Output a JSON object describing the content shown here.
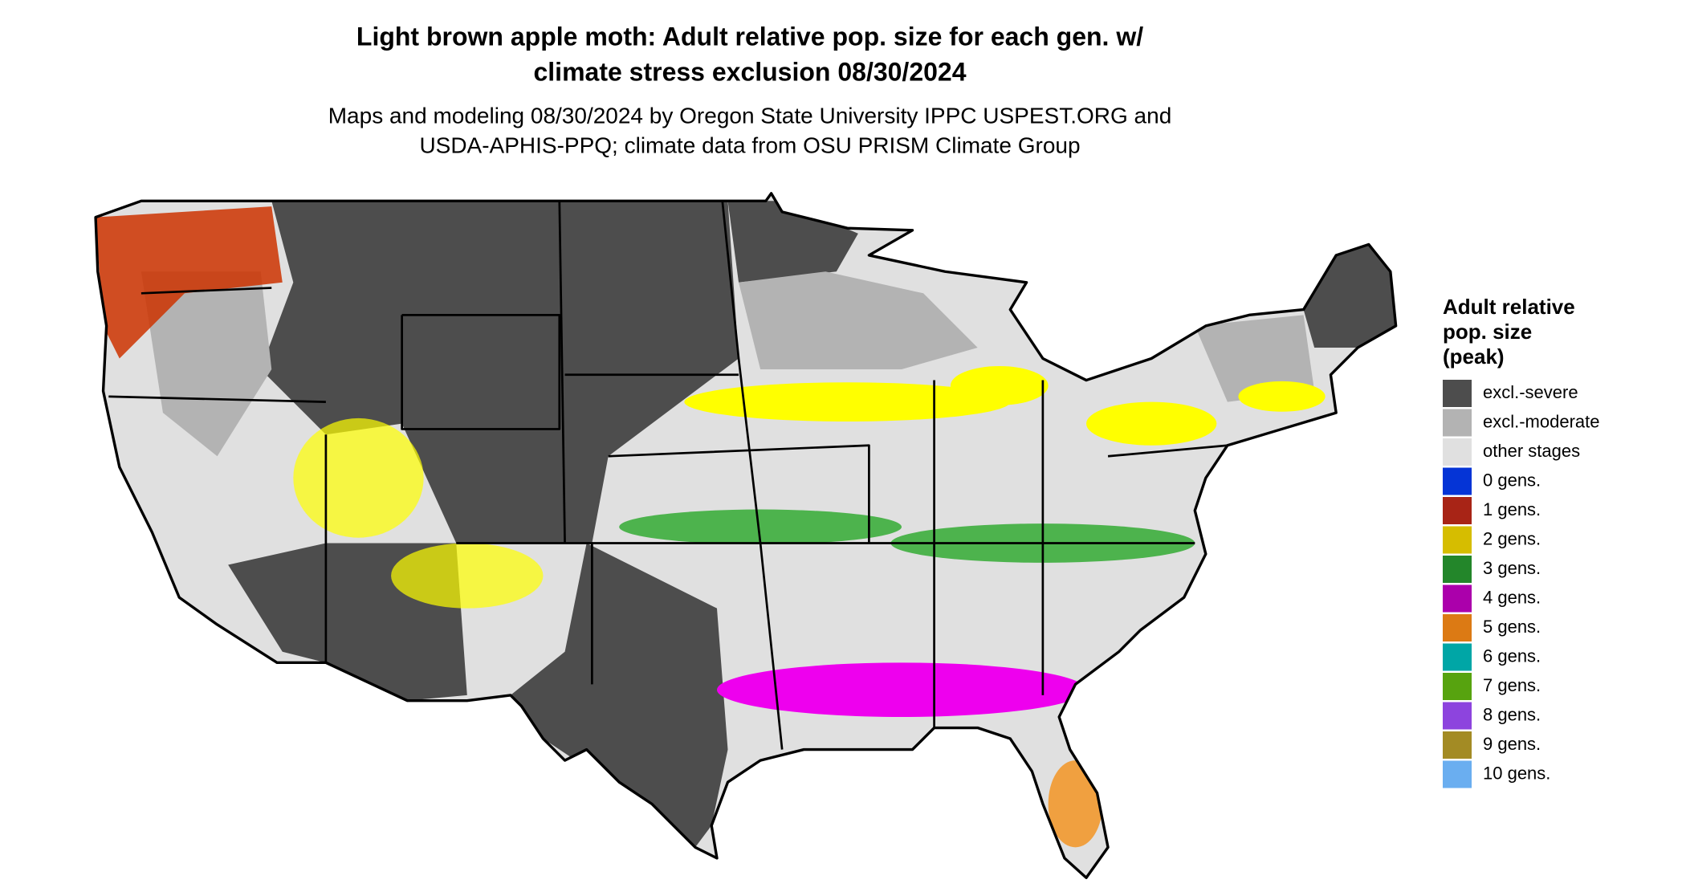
{
  "title": [
    "Light brown apple moth: Adult relative pop. size for each gen. w/",
    "climate stress exclusion 08/30/2024"
  ],
  "subtitle": [
    "Maps and modeling 08/30/2024 by Oregon State University IPPC USPEST.ORG and",
    "USDA-APHIS-PPQ; climate data from OSU PRISM Climate Group"
  ],
  "legend": {
    "title": [
      "Adult relative",
      "pop. size",
      "(peak)"
    ],
    "items": [
      {
        "label": "excl.-severe",
        "color": "#4d4d4d"
      },
      {
        "label": "excl.-moderate",
        "color": "#b3b3b3"
      },
      {
        "label": "other stages",
        "color": "#e0e0e0"
      },
      {
        "label": "0 gens.",
        "color": "#0534d6"
      },
      {
        "label": "1 gens.",
        "color": "#a82416"
      },
      {
        "label": "2 gens.",
        "color": "#d6bd00"
      },
      {
        "label": "3 gens.",
        "color": "#23862a"
      },
      {
        "label": "4 gens.",
        "color": "#ab00ab"
      },
      {
        "label": "5 gens.",
        "color": "#dc7a14"
      },
      {
        "label": "6 gens.",
        "color": "#00a6a6"
      },
      {
        "label": "7 gens.",
        "color": "#57a30f"
      },
      {
        "label": "8 gens.",
        "color": "#8d44de"
      },
      {
        "label": "9 gens.",
        "color": "#a38b24"
      },
      {
        "label": "10 gens.",
        "color": "#6aaef0"
      }
    ]
  }
}
